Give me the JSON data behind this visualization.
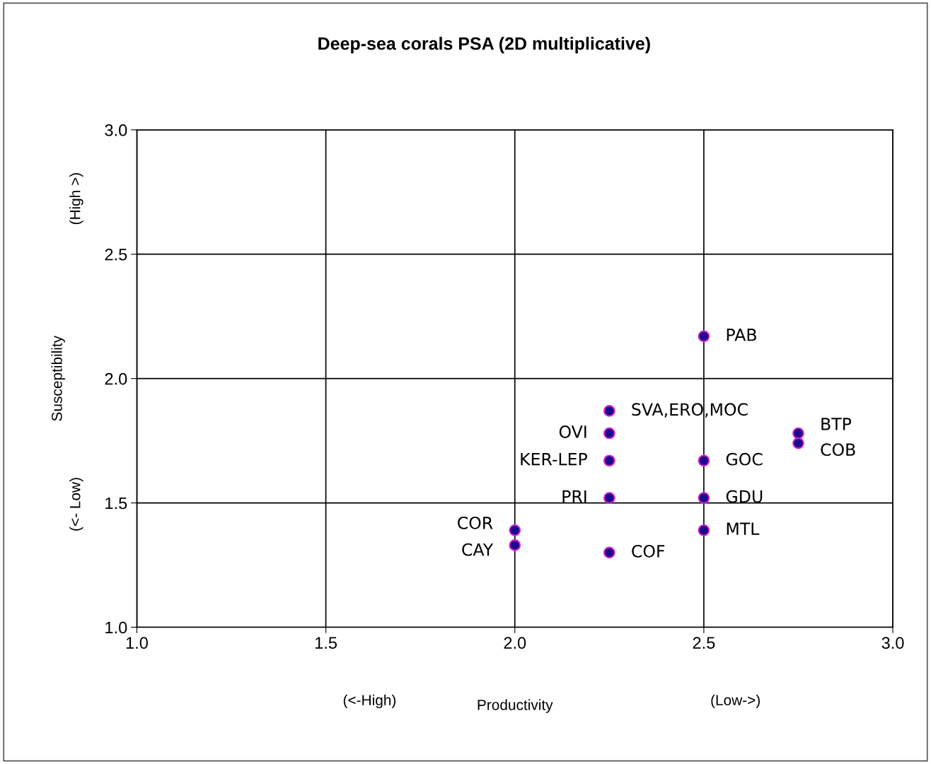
{
  "chart_data": {
    "type": "scatter",
    "title": "Deep-sea corals PSA (2D multiplicative)",
    "xlabel": "Productivity",
    "ylabel": "Susceptibility",
    "series": [
      {
        "color": "#1c0a8c",
        "x": [
          2.5,
          2.25,
          2.25,
          2.25,
          2.25,
          2.25,
          2.0,
          2.0,
          2.5,
          2.5,
          2.5,
          2.75,
          2.75
        ],
        "values": [
          2.17,
          1.87,
          1.78,
          1.67,
          1.52,
          1.3,
          1.39,
          1.33,
          1.67,
          1.52,
          1.39,
          1.78,
          1.74
        ]
      }
    ],
    "marker": "circle",
    "xlim": [
      1.0,
      3.0
    ],
    "ylim": [
      1.0,
      3.0
    ],
    "xticks": [
      {
        "value": 1.0,
        "label": "1.0"
      },
      1.5,
      {
        "value": 2.0,
        "label": "2.0"
      },
      2.5,
      {
        "value": 3.0,
        "label": "3.0"
      }
    ],
    "yticks": [
      {
        "value": 1.0,
        "label": "1.0"
      },
      1.5,
      {
        "value": 2.0,
        "label": "2.0"
      },
      2.5,
      {
        "value": 3.0,
        "label": "3.0"
      }
    ],
    "grid": true,
    "legend": false,
    "annotations": [
      {
        "text": "PAB",
        "x": 2.5,
        "y": 2.17
      },
      {
        "text": "SVA,ERO,MOC",
        "x": 2.25,
        "y": 1.87
      },
      {
        "text": "OVI",
        "x": 2.25,
        "y": 1.78
      },
      {
        "text": "KER-LEP",
        "x": 2.25,
        "y": 1.67
      },
      {
        "text": "PRI",
        "x": 2.25,
        "y": 1.52
      },
      {
        "text": "COF",
        "x": 2.25,
        "y": 1.3
      },
      {
        "text": "COR",
        "x": 2.0,
        "y": 1.39
      },
      {
        "text": "CAY",
        "x": 2.0,
        "y": 1.33
      },
      {
        "text": "GOC",
        "x": 2.5,
        "y": 1.67
      },
      {
        "text": "GDU",
        "x": 2.5,
        "y": 1.52
      },
      {
        "text": "MTL",
        "x": 2.5,
        "y": 1.39
      },
      {
        "text": "BTP",
        "x": 2.75,
        "y": 1.78
      },
      {
        "text": "COB",
        "x": 2.75,
        "y": 1.74
      },
      "(<-High)",
      "(Low->)",
      "(<- Low)",
      "(High >)"
    ]
  }
}
